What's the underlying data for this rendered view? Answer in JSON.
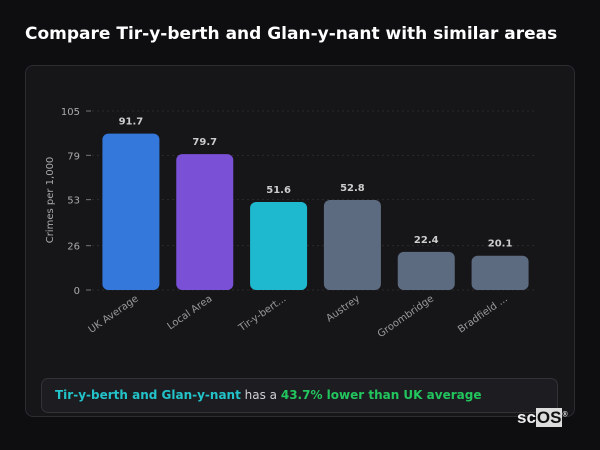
{
  "title": "Compare Tir-y-berth and Glan-y-nant with similar areas",
  "chart_data": {
    "type": "bar",
    "ylabel": "Crimes per 1,000",
    "ylim": [
      0,
      105
    ],
    "yticks": [
      0,
      26,
      53,
      79,
      105
    ],
    "grid": true,
    "categories": [
      "UK Average",
      "Local Area",
      "Tir-y-bert...",
      "Austrey",
      "Groombridge",
      "Bradfield ..."
    ],
    "values": [
      91.7,
      79.7,
      51.6,
      52.8,
      22.4,
      20.1
    ],
    "value_labels": [
      "91.7",
      "79.7",
      "51.6",
      "52.8",
      "22.4",
      "20.1"
    ],
    "colors": [
      "#3478db",
      "#7a50d6",
      "#1fb9cf",
      "#5d6b80",
      "#5d6b80",
      "#5d6b80"
    ]
  },
  "summary": {
    "area": "Tir-y-berth and Glan-y-nant",
    "middle": " has a ",
    "stat": "43.7% lower than UK average"
  },
  "logo": {
    "text1": "sc",
    "text2": "OS"
  }
}
